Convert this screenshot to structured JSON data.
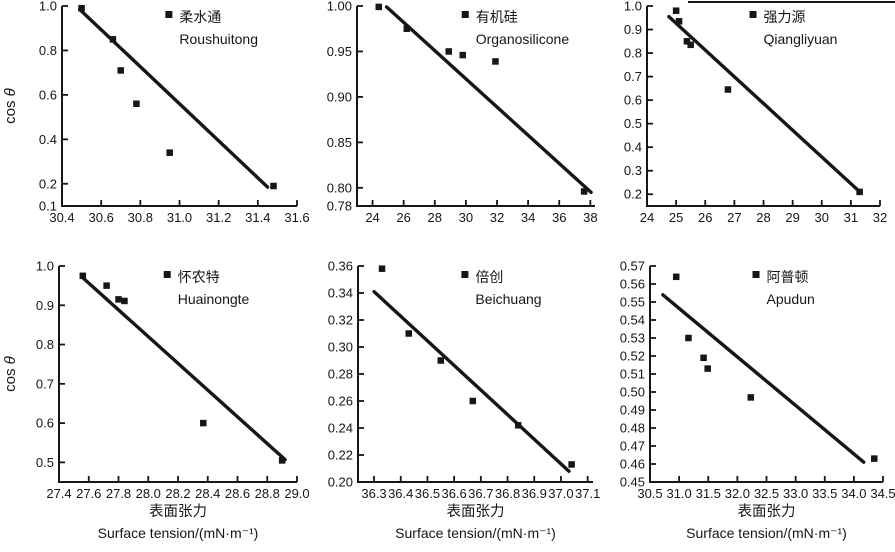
{
  "colors": {
    "ink": "#161616",
    "background": "#ffffff"
  },
  "chart_data": [
    {
      "name": "roushuitong",
      "type": "scatter",
      "legend": {
        "cn": "柔水通",
        "en": "Roushuitong"
      },
      "ylabel": "cos θ",
      "xlim": [
        30.4,
        31.6
      ],
      "ylim": [
        0.1,
        1.0
      ],
      "xticks": {
        "values": [
          30.4,
          30.6,
          30.8,
          31.0,
          31.2,
          31.4,
          31.6
        ],
        "labels": [
          "30.4",
          "30.6",
          "30.8",
          "31.0",
          "31.2",
          "31.4",
          "31.6"
        ]
      },
      "yticks": {
        "values": [
          0.1,
          0.2,
          0.4,
          0.6,
          0.8,
          1.0
        ],
        "labels": [
          "0.1",
          "0.2",
          "0.4",
          "0.6",
          "0.8",
          "1.0"
        ]
      },
      "points": [
        [
          30.5,
          0.99
        ],
        [
          30.66,
          0.85
        ],
        [
          30.7,
          0.71
        ],
        [
          30.78,
          0.56
        ],
        [
          30.95,
          0.34
        ],
        [
          31.48,
          0.19
        ]
      ],
      "trend_line": [
        [
          30.49,
          0.985
        ],
        [
          31.45,
          0.185
        ]
      ]
    },
    {
      "name": "organosilicone",
      "type": "scatter",
      "legend": {
        "cn": "有机硅",
        "en": "Organosilicone"
      },
      "xlim": [
        23.0,
        38.3
      ],
      "ylim": [
        0.78,
        1.0
      ],
      "xticks": {
        "values": [
          24,
          26,
          28,
          30,
          32,
          34,
          36,
          38
        ],
        "labels": [
          "24",
          "26",
          "28",
          "30",
          "32",
          "34",
          "36",
          "38"
        ]
      },
      "yticks": {
        "values": [
          0.78,
          0.8,
          0.85,
          0.9,
          0.95,
          1.0
        ],
        "labels": [
          "0.78",
          "0.80",
          "0.85",
          "0.90",
          "0.95",
          "1.00"
        ]
      },
      "points": [
        [
          24.4,
          0.999
        ],
        [
          26.2,
          0.975
        ],
        [
          28.9,
          0.95
        ],
        [
          29.8,
          0.946
        ],
        [
          31.9,
          0.939
        ],
        [
          37.6,
          0.796
        ]
      ],
      "trend_line": [
        [
          24.9,
          0.999
        ],
        [
          38.05,
          0.795
        ]
      ]
    },
    {
      "name": "qiangliyuan",
      "type": "scatter",
      "legend": {
        "cn": "强力源",
        "en": "Qiangliyuan"
      },
      "xlim": [
        24,
        32
      ],
      "ylim": [
        0.15,
        1.0
      ],
      "xticks": {
        "values": [
          24,
          25,
          26,
          27,
          28,
          29,
          30,
          31,
          32
        ],
        "labels": [
          "24",
          "25",
          "26",
          "27",
          "28",
          "29",
          "30",
          "31",
          "32"
        ]
      },
      "yticks": {
        "values": [
          0.2,
          0.3,
          0.4,
          0.5,
          0.6,
          0.7,
          0.8,
          0.9,
          1.0
        ],
        "labels": [
          "0.2",
          "0.3",
          "0.4",
          "0.5",
          "0.6",
          "0.7",
          "0.8",
          "0.9",
          "1.0"
        ]
      },
      "points": [
        [
          25.0,
          0.98
        ],
        [
          25.1,
          0.935
        ],
        [
          25.37,
          0.85
        ],
        [
          25.5,
          0.835
        ],
        [
          26.78,
          0.645
        ],
        [
          31.3,
          0.21
        ]
      ],
      "trend_line": [
        [
          24.75,
          0.955
        ],
        [
          31.35,
          0.205
        ]
      ]
    },
    {
      "name": "huainongte",
      "type": "scatter",
      "legend": {
        "cn": "怀农特",
        "en": "Huainongte"
      },
      "ylabel": "cos θ",
      "xlabel_cn": "表面张力",
      "xlabel_en": "Surface tension/(mN·m⁻¹)",
      "xlim": [
        27.4,
        29.0
      ],
      "ylim": [
        0.45,
        1.0
      ],
      "xticks": {
        "values": [
          27.4,
          27.6,
          27.8,
          28.0,
          28.2,
          28.4,
          28.6,
          28.8,
          29.0
        ],
        "labels": [
          "27.4",
          "27.6",
          "27.8",
          "28.0",
          "28.2",
          "28.4",
          "28.6",
          "28.8",
          "29.0"
        ]
      },
      "yticks": {
        "values": [
          0.5,
          0.6,
          0.7,
          0.8,
          0.9,
          1.0
        ],
        "labels": [
          "0.5",
          "0.6",
          "0.7",
          "0.8",
          "0.9",
          "1.0"
        ]
      },
      "points": [
        [
          27.56,
          0.975
        ],
        [
          27.72,
          0.95
        ],
        [
          27.8,
          0.915
        ],
        [
          27.84,
          0.911
        ],
        [
          28.37,
          0.6
        ],
        [
          28.9,
          0.505
        ]
      ],
      "trend_line": [
        [
          27.56,
          0.97
        ],
        [
          28.92,
          0.507
        ]
      ]
    },
    {
      "name": "beichuang",
      "type": "scatter",
      "legend": {
        "cn": "倍创",
        "en": "Beichuang"
      },
      "xlabel_cn": "表面张力",
      "xlabel_en": "Surface tension/(mN·m⁻¹)",
      "xlim": [
        36.24,
        37.12
      ],
      "ylim": [
        0.2,
        0.36
      ],
      "xticks": {
        "values": [
          36.3,
          36.4,
          36.5,
          36.6,
          36.7,
          36.8,
          36.9,
          37.0,
          37.1
        ],
        "labels": [
          "36.3",
          "36.4",
          "36.5",
          "36.6",
          "36.7",
          "36.8",
          "36.9",
          "37.0",
          "37.1"
        ]
      },
      "yticks": {
        "values": [
          0.2,
          0.22,
          0.24,
          0.26,
          0.28,
          0.3,
          0.32,
          0.34,
          0.36
        ],
        "labels": [
          "0.20",
          "0.22",
          "0.24",
          "0.26",
          "0.28",
          "0.30",
          "0.32",
          "0.34",
          "0.36"
        ]
      },
      "points": [
        [
          36.33,
          0.358
        ],
        [
          36.43,
          0.31
        ],
        [
          36.55,
          0.29
        ],
        [
          36.67,
          0.26
        ],
        [
          36.84,
          0.242
        ],
        [
          37.04,
          0.213
        ]
      ],
      "trend_line": [
        [
          36.3,
          0.341
        ],
        [
          37.03,
          0.208
        ]
      ]
    },
    {
      "name": "apudun",
      "type": "scatter",
      "legend": {
        "cn": "阿普顿",
        "en": "Apudun"
      },
      "xlabel_cn": "表面张力",
      "xlabel_en": "Surface tension/(mN·m⁻¹)",
      "xlim": [
        30.5,
        34.5
      ],
      "ylim": [
        0.45,
        0.57
      ],
      "xticks": {
        "values": [
          30.5,
          31.0,
          31.5,
          32.0,
          32.5,
          33.0,
          33.5,
          34.0,
          34.5
        ],
        "labels": [
          "30.5",
          "31.0",
          "31.5",
          "32.0",
          "32.5",
          "33.0",
          "33.5",
          "34.0",
          "34.5"
        ]
      },
      "yticks": {
        "values": [
          0.45,
          0.46,
          0.47,
          0.48,
          0.49,
          0.5,
          0.51,
          0.52,
          0.53,
          0.54,
          0.55,
          0.56,
          0.57
        ],
        "labels": [
          "0.45",
          "0.46",
          "0.47",
          "0.48",
          "0.49",
          "0.50",
          "0.51",
          "0.52",
          "0.53",
          "0.54",
          "0.55",
          "0.56",
          "0.57"
        ]
      },
      "points": [
        [
          30.95,
          0.564
        ],
        [
          31.16,
          0.53
        ],
        [
          31.42,
          0.519
        ],
        [
          31.49,
          0.513
        ],
        [
          32.23,
          0.497
        ],
        [
          34.35,
          0.463
        ]
      ],
      "trend_line": [
        [
          30.72,
          0.554
        ],
        [
          34.17,
          0.461
        ]
      ]
    }
  ]
}
